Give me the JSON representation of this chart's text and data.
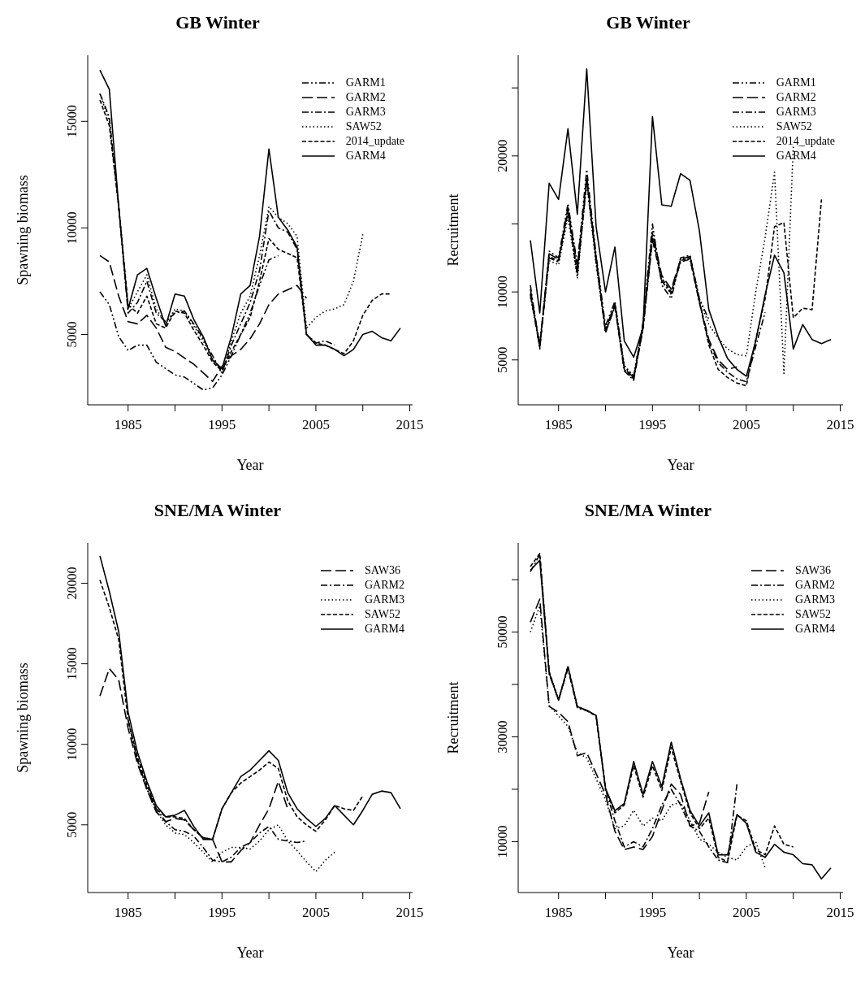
{
  "chart_data": [
    {
      "type": "line",
      "title": "GB Winter",
      "xlabel": "Year",
      "ylabel": "Spawning biomass",
      "legend": "top right",
      "marker": "none",
      "xlim": [
        1980.7,
        2015.3
      ],
      "xticks": [
        1985,
        {
          "value": 1990,
          "label": null
        },
        1995,
        {
          "value": 2000,
          "label": null
        },
        2005,
        {
          "value": 2010,
          "label": null
        },
        2015
      ],
      "ylim": [
        1700,
        18100
      ],
      "yticks": [
        5000,
        10000,
        15000
      ],
      "series": [
        {
          "name": "GARM1",
          "color": "#000000",
          "line_style": "dashdotdot",
          "x": [
            1982,
            1983,
            1984,
            1985,
            1986,
            1987,
            1988,
            1989,
            1990,
            1991,
            1992,
            1993,
            1994,
            1995,
            1996,
            1997,
            1998,
            1999,
            2000,
            2001
          ],
          "values": [
            7000,
            6400,
            4900,
            4250,
            4500,
            4500,
            3700,
            3400,
            3100,
            3000,
            2700,
            2400,
            2500,
            3100,
            4000,
            5000,
            6000,
            7300,
            8500,
            8700
          ]
        },
        {
          "name": "GARM2",
          "color": "#000000",
          "line_style": "longdash",
          "x": [
            1982,
            1983,
            1984,
            1985,
            1986,
            1987,
            1988,
            1989,
            1990,
            1991,
            1992,
            1993,
            1994,
            1995,
            1996,
            1997,
            1998,
            1999,
            2000,
            2001,
            2002,
            2003,
            2004
          ],
          "values": [
            8700,
            8400,
            6800,
            5600,
            5500,
            5900,
            5300,
            4400,
            4200,
            3900,
            3600,
            3200,
            2800,
            3500,
            4000,
            4300,
            4800,
            5500,
            6400,
            6900,
            7100,
            7300,
            6700
          ]
        },
        {
          "name": "GARM3",
          "color": "#000000",
          "line_style": "dashdot",
          "x": [
            1982,
            1983,
            1984,
            1985,
            1986,
            1987,
            1988,
            1989,
            1990,
            1991,
            1992,
            1993,
            1994,
            1995,
            1996,
            1997,
            1998,
            1999,
            2000,
            2001,
            2002,
            2003,
            2004,
            2005,
            2006,
            2007
          ],
          "values": [
            16300,
            15200,
            11000,
            6000,
            6500,
            7500,
            6000,
            5600,
            6000,
            6100,
            5500,
            4800,
            4000,
            3200,
            4500,
            5500,
            6500,
            8000,
            10800,
            10000,
            9800,
            9000,
            5000,
            4600,
            4700,
            4500
          ]
        },
        {
          "name": "SAW52",
          "color": "#000000",
          "line_style": "dotted",
          "x": [
            1982,
            1983,
            1984,
            1985,
            1986,
            1987,
            1988,
            1989,
            1990,
            1991,
            1992,
            1993,
            1994,
            1995,
            1996,
            1997,
            1998,
            1999,
            2000,
            2001,
            2002,
            2003,
            2004,
            2005,
            2006,
            2007,
            2008,
            2009,
            2010
          ],
          "values": [
            16300,
            15000,
            11000,
            6200,
            7000,
            7800,
            6200,
            5500,
            6200,
            6100,
            5400,
            4700,
            3800,
            3200,
            4700,
            6000,
            6800,
            8700,
            11000,
            10500,
            10200,
            9600,
            5300,
            5800,
            6100,
            6200,
            6400,
            7500,
            9700
          ]
        },
        {
          "name": "2014_update",
          "color": "#000000",
          "line_style": "dashed",
          "x": [
            1982,
            1983,
            1984,
            1985,
            1986,
            1987,
            1988,
            1989,
            1990,
            1991,
            1992,
            1993,
            1994,
            1995,
            1996,
            1997,
            1998,
            1999,
            2000,
            2001,
            2002,
            2003,
            2004,
            2005,
            2006,
            2007,
            2008,
            2009,
            2010,
            2011,
            2012,
            2013
          ],
          "values": [
            16000,
            14800,
            11000,
            6400,
            6000,
            6800,
            5500,
            5300,
            6100,
            6000,
            5200,
            4500,
            3700,
            3300,
            4200,
            5000,
            5800,
            7500,
            9500,
            9000,
            8800,
            8600,
            5000,
            4600,
            4500,
            4300,
            4100,
            4700,
            5900,
            6600,
            6900,
            6900
          ]
        },
        {
          "name": "GARM4",
          "color": "#000000",
          "line_style": "solid",
          "x": [
            1982,
            1983,
            1984,
            1985,
            1986,
            1987,
            1988,
            1989,
            1990,
            1991,
            1992,
            1993,
            1994,
            1995,
            1996,
            1997,
            1998,
            1999,
            2000,
            2001,
            2002,
            2003,
            2004,
            2005,
            2006,
            2007,
            2008,
            2009,
            2010,
            2011,
            2012,
            2013,
            2014
          ],
          "values": [
            17400,
            16500,
            11000,
            6200,
            7800,
            8100,
            6700,
            5400,
            6900,
            6800,
            5700,
            4900,
            3800,
            3400,
            4900,
            6900,
            7300,
            9600,
            13700,
            10500,
            9900,
            9100,
            5000,
            4500,
            4500,
            4300,
            4000,
            4300,
            5000,
            5150,
            4850,
            4700,
            5300
          ]
        }
      ]
    },
    {
      "type": "line",
      "title": "GB Winter",
      "xlabel": "Year",
      "ylabel": "Recruitment",
      "legend": "top right",
      "marker": "none",
      "xlim": [
        1980.7,
        2015.3
      ],
      "xticks": [
        1985,
        {
          "value": 1990,
          "label": null
        },
        1995,
        {
          "value": 2000,
          "label": null
        },
        2005,
        {
          "value": 2010,
          "label": null
        },
        2015
      ],
      "ylim": [
        1700,
        27400
      ],
      "yticks": [
        5000,
        10000,
        {
          "value": 15000,
          "label": null
        },
        20000,
        {
          "value": 25000,
          "label": null
        }
      ],
      "series": [
        {
          "name": "GARM1",
          "color": "#000000",
          "line_style": "dashdotdot",
          "x": [
            1982,
            1983,
            1984,
            1985,
            1986,
            1987,
            1988,
            1989,
            1990,
            1991,
            1992,
            1993,
            1994,
            1995,
            1996,
            1997,
            1998,
            1999,
            2000,
            2001
          ],
          "values": [
            10500,
            5800,
            13000,
            12500,
            16500,
            12000,
            19000,
            12700,
            7500,
            9300,
            4500,
            3800,
            7800,
            15000,
            10500,
            9500,
            12500,
            12700,
            9500,
            8000
          ]
        },
        {
          "name": "GARM2",
          "color": "#000000",
          "line_style": "longdash",
          "x": [
            1982,
            1983,
            1984,
            1985,
            1986,
            1987,
            1988,
            1989,
            1990,
            1991,
            1992,
            1993,
            1994,
            1995,
            1996,
            1997,
            1998,
            1999,
            2000,
            2001,
            2002,
            2003,
            2004
          ],
          "values": [
            10200,
            6100,
            12800,
            12400,
            16200,
            11800,
            18500,
            12500,
            7200,
            9100,
            4400,
            3700,
            7500,
            14300,
            11200,
            10200,
            12400,
            12600,
            9300,
            6500,
            5000,
            4300,
            4500
          ]
        },
        {
          "name": "GARM3",
          "color": "#000000",
          "line_style": "dashdot",
          "x": [
            1982,
            1983,
            1984,
            1985,
            1986,
            1987,
            1988,
            1989,
            1990,
            1991,
            1992,
            1993,
            1994,
            1995,
            1996,
            1997,
            1998,
            1999,
            2000,
            2001,
            2002,
            2003,
            2004,
            2005,
            2006,
            2007
          ],
          "values": [
            9800,
            5900,
            12500,
            12200,
            15900,
            11200,
            18200,
            12200,
            7000,
            8900,
            4200,
            3500,
            7300,
            13800,
            10800,
            9900,
            12200,
            12400,
            9200,
            6300,
            4800,
            4100,
            3600,
            3400,
            6000,
            8500
          ]
        },
        {
          "name": "SAW52",
          "color": "#000000",
          "line_style": "dotted",
          "x": [
            1982,
            1983,
            1984,
            1985,
            1986,
            1987,
            1988,
            1989,
            1990,
            1991,
            1992,
            1993,
            1994,
            1995,
            1996,
            1997,
            1998,
            1999,
            2000,
            2001,
            2002,
            2003,
            2004,
            2005,
            2006,
            2007,
            2008,
            2009,
            2010
          ],
          "values": [
            9600,
            6300,
            12300,
            12000,
            15500,
            11000,
            18000,
            12000,
            7200,
            9200,
            4600,
            3800,
            7600,
            14500,
            10800,
            9800,
            12400,
            12600,
            9500,
            7600,
            6600,
            5800,
            5400,
            5300,
            10000,
            14000,
            18800,
            4000,
            20700
          ]
        },
        {
          "name": "2014_update",
          "color": "#000000",
          "line_style": "dashed",
          "x": [
            1982,
            1983,
            1984,
            1985,
            1986,
            1987,
            1988,
            1989,
            1990,
            1991,
            1992,
            1993,
            1994,
            1995,
            1996,
            1997,
            1998,
            1999,
            2000,
            2001,
            2002,
            2003,
            2004,
            2005,
            2006,
            2007,
            2008,
            2009,
            2010,
            2011,
            2012,
            2013
          ],
          "values": [
            9900,
            6000,
            12600,
            12300,
            16000,
            11400,
            18300,
            12400,
            7000,
            9000,
            4300,
            3600,
            7400,
            14000,
            11000,
            10000,
            12300,
            12500,
            9300,
            6100,
            4300,
            3700,
            3300,
            3100,
            6500,
            9500,
            14800,
            15100,
            8100,
            8800,
            8700,
            16800
          ]
        },
        {
          "name": "GARM4",
          "color": "#000000",
          "line_style": "solid",
          "x": [
            1982,
            1983,
            1984,
            1985,
            1986,
            1987,
            1988,
            1989,
            1990,
            1991,
            1992,
            1993,
            1994,
            1995,
            1996,
            1997,
            1998,
            1999,
            2000,
            2001,
            2002,
            2003,
            2004,
            2005,
            2006,
            2007,
            2008,
            2009,
            2010,
            2011,
            2012,
            2013,
            2014
          ],
          "values": [
            13800,
            8450,
            18000,
            16800,
            22000,
            15700,
            26400,
            14800,
            10000,
            13300,
            6400,
            5200,
            7400,
            22900,
            16400,
            16300,
            18700,
            18200,
            14500,
            8700,
            6700,
            5100,
            4300,
            3800,
            6400,
            9800,
            12700,
            11400,
            5800,
            7600,
            6500,
            6200,
            6500
          ]
        }
      ]
    },
    {
      "type": "line",
      "title": "SNE/MA Winter",
      "xlabel": "Year",
      "ylabel": "Spawning biomass",
      "legend": "top right",
      "marker": "none",
      "xlim": [
        1980.7,
        2015.3
      ],
      "xticks": [
        1985,
        {
          "value": 1990,
          "label": null
        },
        1995,
        {
          "value": 2000,
          "label": null
        },
        2005,
        {
          "value": 2010,
          "label": null
        },
        2015
      ],
      "ylim": [
        800,
        22500
      ],
      "yticks": [
        5000,
        10000,
        15000,
        20000
      ],
      "series": [
        {
          "name": "SAW36",
          "color": "#000000",
          "line_style": "longdash",
          "x": [
            1982,
            1983,
            1984,
            1985,
            1986,
            1987,
            1988,
            1989,
            1990,
            1991,
            1992,
            1993,
            1994,
            1995,
            1996,
            1997,
            1998,
            1999,
            2000,
            2001,
            2002
          ],
          "values": [
            13000,
            14700,
            14000,
            11000,
            8800,
            7200,
            5800,
            5200,
            5400,
            5300,
            4700,
            4200,
            4100,
            2700,
            2700,
            3400,
            3900,
            5000,
            6000,
            7700,
            6000
          ]
        },
        {
          "name": "GARM2",
          "color": "#000000",
          "line_style": "dashdot",
          "x": [
            1985,
            1986,
            1987,
            1988,
            1989,
            1990,
            1991,
            1992,
            1993,
            1994,
            1995,
            1996,
            1997,
            1998,
            1999,
            2000,
            2001,
            2002,
            2003,
            2004
          ],
          "values": [
            11500,
            9000,
            7300,
            6000,
            5200,
            4700,
            4600,
            4300,
            3600,
            2800,
            2700,
            3000,
            3600,
            3900,
            4500,
            4900,
            4100,
            4000,
            3900,
            4000
          ]
        },
        {
          "name": "GARM3",
          "color": "#000000",
          "line_style": "dotted",
          "x": [
            1985,
            1986,
            1987,
            1988,
            1989,
            1990,
            1991,
            1992,
            1993,
            1994,
            1995,
            1996,
            1997,
            1998,
            1999,
            2000,
            2001,
            2002,
            2003,
            2004,
            2005,
            2006,
            2007
          ],
          "values": [
            11500,
            9000,
            7200,
            5900,
            5000,
            4500,
            4400,
            3900,
            3300,
            2700,
            3300,
            3600,
            3600,
            3500,
            4000,
            4700,
            5000,
            4000,
            3400,
            2700,
            2100,
            2800,
            3300
          ]
        },
        {
          "name": "SAW52",
          "color": "#000000",
          "line_style": "dashed",
          "x": [
            1982,
            1983,
            1984,
            1985,
            1986,
            1987,
            1988,
            1989,
            1990,
            1991,
            1992,
            1993,
            1994,
            1995,
            1996,
            1997,
            1998,
            1999,
            2000,
            2001,
            2002,
            2003,
            2004,
            2005,
            2006,
            2007,
            2008,
            2009,
            2010
          ],
          "values": [
            20200,
            18500,
            16500,
            11500,
            9200,
            7500,
            6000,
            5500,
            5500,
            5400,
            4700,
            4200,
            4100,
            6000,
            7000,
            7600,
            8000,
            8400,
            8900,
            8500,
            6500,
            5500,
            5000,
            4600,
            5300,
            6200,
            6000,
            5900,
            6800
          ]
        },
        {
          "name": "GARM4",
          "color": "#000000",
          "line_style": "solid",
          "x": [
            1982,
            1983,
            1984,
            1985,
            1986,
            1987,
            1988,
            1989,
            1990,
            1991,
            1992,
            1993,
            1994,
            1995,
            1996,
            1997,
            1998,
            1999,
            2000,
            2001,
            2002,
            2003,
            2004,
            2005,
            2006,
            2007,
            2008,
            2009,
            2010,
            2011,
            2012,
            2013,
            2014
          ],
          "values": [
            21700,
            19500,
            17000,
            12000,
            9500,
            7700,
            6200,
            5500,
            5600,
            5900,
            4900,
            4100,
            4100,
            6000,
            7000,
            8000,
            8400,
            9000,
            9600,
            9000,
            7000,
            6000,
            5400,
            4900,
            5400,
            6200,
            5600,
            5000,
            5900,
            6900,
            7100,
            7000,
            6000
          ]
        }
      ]
    },
    {
      "type": "line",
      "title": "SNE/MA Winter",
      "xlabel": "Year",
      "ylabel": "Recruitment",
      "legend": "top right",
      "marker": "none",
      "xlim": [
        1980.7,
        2015.3
      ],
      "xticks": [
        1985,
        {
          "value": 1990,
          "label": null
        },
        1995,
        {
          "value": 2000,
          "label": null
        },
        2005,
        {
          "value": 2010,
          "label": null
        },
        2015
      ],
      "ylim": [
        300,
        67000
      ],
      "yticks": [
        10000,
        {
          "value": 20000,
          "label": null
        },
        30000,
        {
          "value": 40000,
          "label": null
        },
        50000,
        {
          "value": 60000,
          "label": null
        }
      ],
      "series": [
        {
          "name": "SAW36",
          "color": "#000000",
          "line_style": "longdash",
          "x": [
            1982,
            1983,
            1984,
            1985,
            1986,
            1987,
            1988,
            1989,
            1990,
            1991,
            1992,
            1993,
            1994,
            1995,
            1996,
            1997,
            1998,
            1999,
            2000,
            2001
          ],
          "values": [
            51900,
            56300,
            35800,
            34700,
            32900,
            26400,
            27000,
            23000,
            19000,
            12000,
            8500,
            9000,
            8500,
            11000,
            16000,
            21000,
            19000,
            13000,
            13500,
            19500
          ]
        },
        {
          "name": "GARM2",
          "color": "#000000",
          "line_style": "dashdot",
          "x": [
            1982,
            1983,
            1984,
            1985,
            1986,
            1987,
            1988,
            1989,
            1990,
            1991,
            1992,
            1993,
            1994,
            1995,
            1996,
            1997,
            1998,
            1999,
            2000,
            2001,
            2002,
            2003,
            2004
          ],
          "values": [
            61500,
            64800,
            42000,
            37000,
            43000,
            35500,
            35000,
            34000,
            20000,
            14000,
            9000,
            10000,
            9000,
            12500,
            17000,
            20000,
            17000,
            13000,
            12000,
            9000,
            6500,
            6000,
            21000
          ]
        },
        {
          "name": "GARM3",
          "color": "#000000",
          "line_style": "dotted",
          "x": [
            1982,
            1983,
            1984,
            1985,
            1986,
            1987,
            1988,
            1989,
            1990,
            1991,
            1992,
            1993,
            1994,
            1995,
            1996,
            1997,
            1998,
            1999,
            2000,
            2001,
            2002,
            2003,
            2004,
            2005,
            2006,
            2007
          ],
          "values": [
            50000,
            55000,
            36000,
            34000,
            32000,
            27000,
            26000,
            22000,
            18000,
            12500,
            13000,
            16000,
            13000,
            14500,
            14000,
            17000,
            17500,
            14000,
            10500,
            9500,
            8000,
            7000,
            6500,
            9000,
            10000,
            5000
          ]
        },
        {
          "name": "SAW52",
          "color": "#000000",
          "line_style": "dashed",
          "x": [
            1982,
            1983,
            1984,
            1985,
            1986,
            1987,
            1988,
            1989,
            1990,
            1991,
            1992,
            1993,
            1994,
            1995,
            1996,
            1997,
            1998,
            1999,
            2000,
            2001,
            2002,
            2003,
            2004,
            2005,
            2006,
            2007,
            2008,
            2009,
            2010
          ],
          "values": [
            62500,
            65000,
            42500,
            37000,
            43500,
            35800,
            35000,
            34000,
            20000,
            15500,
            17000,
            24500,
            18500,
            24500,
            19800,
            28000,
            21500,
            15500,
            12500,
            14500,
            7000,
            6200,
            15000,
            14000,
            8500,
            7500,
            13000,
            9500,
            9000
          ]
        },
        {
          "name": "GARM4",
          "color": "#000000",
          "line_style": "solid",
          "x": [
            1982,
            1983,
            1984,
            1985,
            1986,
            1987,
            1988,
            1989,
            1990,
            1991,
            1992,
            1993,
            1994,
            1995,
            1996,
            1997,
            1998,
            1999,
            2000,
            2001,
            2002,
            2003,
            2004,
            2005,
            2006,
            2007,
            2008,
            2009,
            2010,
            2011,
            2012,
            2013,
            2014
          ],
          "values": [
            61800,
            63700,
            42200,
            37100,
            43400,
            35800,
            35100,
            34100,
            20200,
            15900,
            17300,
            25300,
            19000,
            25300,
            20500,
            29000,
            22000,
            16000,
            13000,
            15500,
            7500,
            7500,
            15200,
            13500,
            8000,
            7000,
            9500,
            8000,
            7500,
            5800,
            5600,
            2900,
            5000
          ]
        }
      ]
    }
  ]
}
